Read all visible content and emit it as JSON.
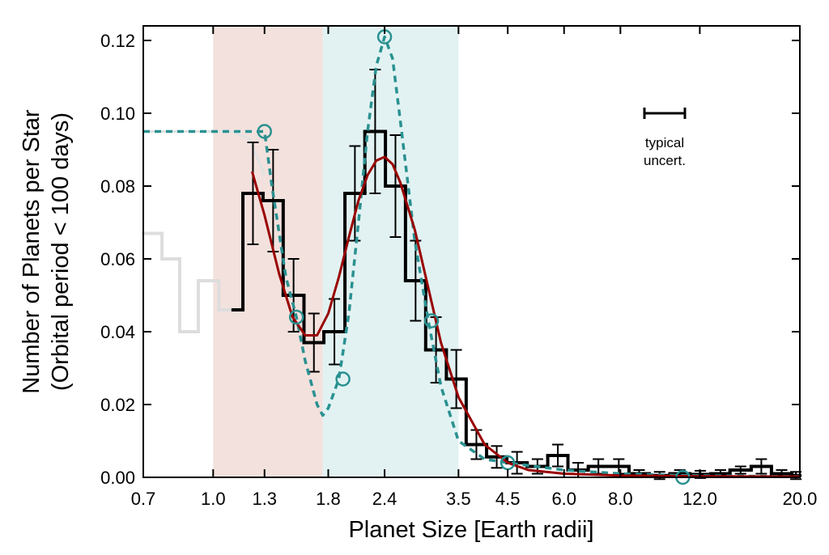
{
  "chart_data": {
    "type": "histogram",
    "xlabel": "Planet Size [Earth radii]",
    "ylabel": [
      "Number of Planets per Star",
      "(Orbital period < 100 days)"
    ],
    "annotation": [
      "typical",
      "uncert."
    ],
    "xscale": "log",
    "xlim": [
      0.7,
      20.0
    ],
    "ylim": [
      0,
      0.124
    ],
    "xticks": [
      0.7,
      {
        "value": 1.0,
        "label": "1.0"
      },
      1.3,
      1.8,
      2.4,
      3.5,
      4.5,
      {
        "value": 6.0,
        "label": "6.0"
      },
      {
        "value": 8.0,
        "label": "8.0"
      },
      {
        "value": 12.0,
        "label": "12.0"
      },
      {
        "value": 20.0,
        "label": "20.0"
      }
    ],
    "yticks": [
      {
        "value": 0,
        "label": "0.00"
      },
      {
        "value": 0.02,
        "label": "0.02"
      },
      {
        "value": 0.04,
        "label": "0.04"
      },
      {
        "value": 0.06,
        "label": "0.06"
      },
      {
        "value": 0.08,
        "label": "0.08"
      },
      {
        "value": 0.1,
        "label": "0.10"
      },
      {
        "value": 0.12,
        "label": "0.12"
      }
    ],
    "shaded_regions": [
      {
        "range": [
          1.0,
          1.75
        ],
        "color": "#f3e1dd"
      },
      {
        "range": [
          1.75,
          3.5
        ],
        "color": "#e2f2f2"
      }
    ],
    "series": [
      {
        "kind": "step",
        "color": "#dddddd",
        "width": 4,
        "bins": [
          0.7,
          0.77,
          0.843,
          0.927,
          1.029,
          1.107
        ],
        "values": [
          0.067,
          0.06,
          0.04,
          0.054,
          0.046
        ]
      },
      {
        "kind": "line",
        "color": "#e2e2e2",
        "width": 3,
        "x": [
          0.7,
          1.1,
          1.2,
          1.25,
          1.3
        ],
        "values": [
          0.095,
          0.095,
          0.093,
          0.088,
          0.083
        ]
      },
      {
        "kind": "step",
        "color": "#000000",
        "width": 4,
        "bins": [
          1.107,
          1.164,
          1.29,
          1.43,
          1.59,
          1.76,
          1.96,
          2.17,
          2.41,
          2.67,
          2.96,
          3.29,
          3.64,
          4.04,
          4.48,
          4.97,
          5.52,
          6.12,
          6.79,
          7.53,
          8.36,
          9.27,
          10.3,
          11.4,
          12.7,
          14.0,
          15.6,
          17.3,
          19.2,
          20.0
        ],
        "values": [
          0.046,
          0.078,
          0.076,
          0.05,
          0.037,
          0.04,
          0.078,
          0.095,
          0.08,
          0.054,
          0.035,
          0.027,
          0.009,
          0.0056,
          0.004,
          0.003,
          0.006,
          0.002,
          0.003,
          0.003,
          0.001,
          0.0005,
          0.001,
          0.0008,
          0.001,
          0.002,
          0.003,
          0.001,
          0.0005
        ],
        "errors": [
          null,
          0.014,
          0.014,
          0.01,
          0.008,
          0.009,
          0.013,
          0.017,
          0.014,
          0.011,
          0.009,
          0.008,
          0.004,
          0.003,
          0.003,
          0.002,
          0.003,
          0.002,
          0.002,
          0.002,
          0.001,
          0.001,
          0.001,
          0.001,
          0.001,
          0.001,
          0.002,
          0.001,
          0.001
        ]
      },
      {
        "kind": "line",
        "color": "#2a9191",
        "width": 3.5,
        "dashed": true,
        "x": [
          0.7,
          1.3,
          1.35,
          1.45,
          1.53,
          1.6,
          1.7,
          1.75,
          1.8,
          1.9,
          2.0,
          2.1,
          2.2,
          2.3,
          2.4,
          2.5,
          2.6,
          2.8,
          3.0,
          3.2,
          3.5,
          4.0,
          4.5,
          6.0,
          8.0,
          11.0,
          20.0
        ],
        "values": [
          0.095,
          0.095,
          0.08,
          0.055,
          0.044,
          0.032,
          0.02,
          0.017,
          0.019,
          0.027,
          0.045,
          0.07,
          0.095,
          0.113,
          0.121,
          0.115,
          0.098,
          0.065,
          0.043,
          0.025,
          0.01,
          0.005,
          0.004,
          0.002,
          0.001,
          0.0005,
          0.0002
        ]
      },
      {
        "kind": "line",
        "color": "#990000",
        "width": 3,
        "x": [
          1.22,
          1.3,
          1.4,
          1.5,
          1.6,
          1.7,
          1.8,
          1.9,
          2.0,
          2.1,
          2.2,
          2.3,
          2.4,
          2.5,
          2.6,
          2.8,
          3.0,
          3.2,
          3.5,
          4.0,
          4.5,
          5.0,
          6.0,
          8.0,
          12.0,
          20.0
        ],
        "values": [
          0.084,
          0.072,
          0.056,
          0.044,
          0.039,
          0.039,
          0.045,
          0.055,
          0.066,
          0.076,
          0.083,
          0.087,
          0.088,
          0.086,
          0.081,
          0.068,
          0.052,
          0.037,
          0.022,
          0.009,
          0.004,
          0.002,
          0.001,
          0.0005,
          0.0003,
          0.0002
        ]
      },
      {
        "kind": "points",
        "color": "#2a9191",
        "x": [
          1.3,
          1.53,
          1.94,
          2.4,
          3.05,
          4.5,
          11.0
        ],
        "values": [
          0.095,
          0.044,
          0.027,
          0.121,
          0.043,
          0.004,
          0.0
        ]
      }
    ]
  }
}
